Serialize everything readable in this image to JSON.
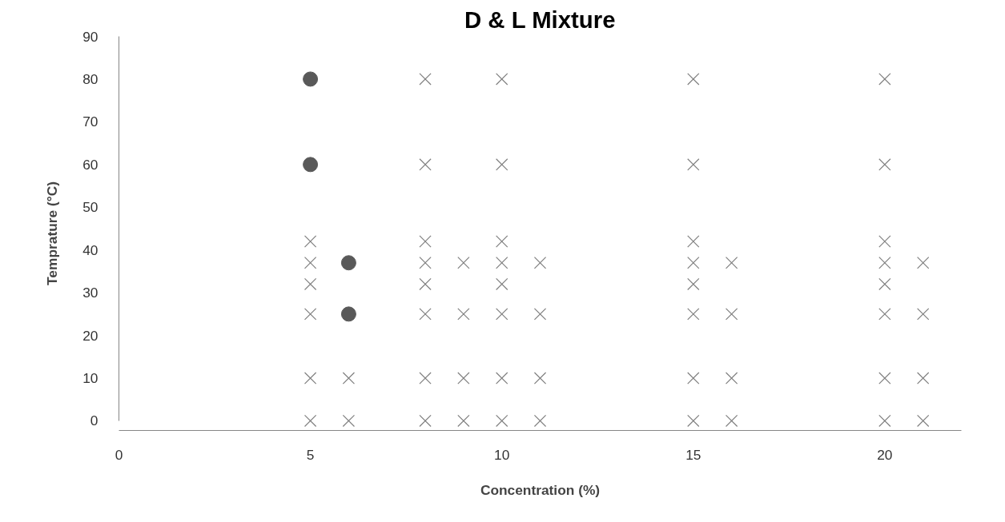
{
  "chart_data": {
    "type": "scatter",
    "title": "D & L Mixture",
    "xlabel": "Concentration (%)",
    "ylabel": "Temprature (°C)",
    "xlim": [
      0,
      22
    ],
    "xticks": [
      0,
      5,
      10,
      15,
      20
    ],
    "ylim": [
      0,
      90
    ],
    "yticks": [
      0,
      10,
      20,
      30,
      40,
      50,
      60,
      70,
      80,
      90
    ],
    "grid": false,
    "series": [
      {
        "color": "#595959",
        "marker": "circle",
        "x": [
          5,
          5,
          6,
          6
        ],
        "values": [
          80,
          60,
          37,
          25
        ]
      },
      {
        "color": "#7f7f7f",
        "marker": "cross",
        "x": [
          5,
          5,
          5,
          5,
          5,
          5,
          6,
          6,
          8,
          8,
          8,
          8,
          8,
          8,
          8,
          8,
          9,
          9,
          9,
          9,
          10,
          10,
          10,
          10,
          10,
          10,
          10,
          10,
          11,
          11,
          11,
          11,
          15,
          15,
          15,
          15,
          15,
          15,
          15,
          15,
          16,
          16,
          16,
          16,
          20,
          20,
          20,
          20,
          20,
          20,
          20,
          20,
          21,
          21,
          21,
          21
        ],
        "values": [
          0,
          10,
          25,
          32,
          37,
          42,
          0,
          10,
          0,
          10,
          25,
          32,
          37,
          42,
          60,
          80,
          0,
          10,
          25,
          37,
          0,
          10,
          25,
          32,
          37,
          42,
          60,
          80,
          0,
          10,
          25,
          37,
          0,
          10,
          25,
          32,
          37,
          42,
          60,
          80,
          0,
          10,
          25,
          37,
          0,
          10,
          25,
          32,
          37,
          42,
          60,
          80,
          0,
          10,
          25,
          37
        ]
      }
    ]
  }
}
